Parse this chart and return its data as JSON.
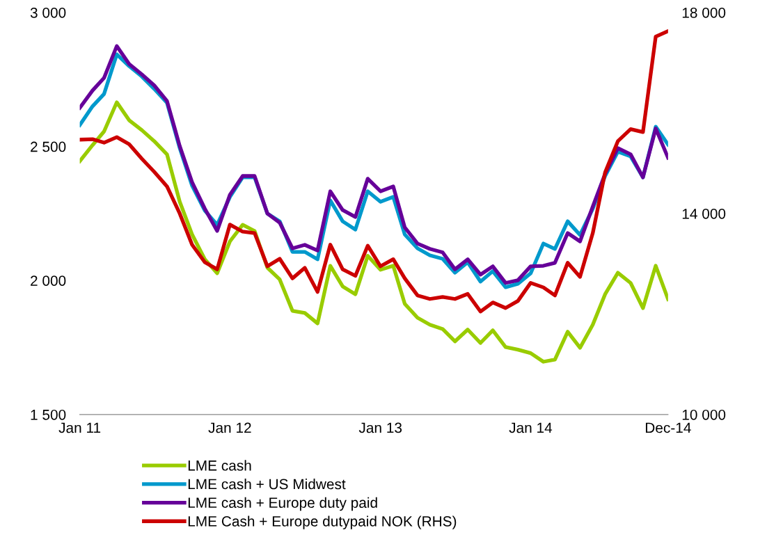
{
  "chart_data": {
    "type": "line",
    "x": [
      "2011-01",
      "2011-02",
      "2011-03",
      "2011-04",
      "2011-05",
      "2011-06",
      "2011-07",
      "2011-08",
      "2011-09",
      "2011-10",
      "2011-11",
      "2011-12",
      "2012-01",
      "2012-02",
      "2012-03",
      "2012-04",
      "2012-05",
      "2012-06",
      "2012-07",
      "2012-08",
      "2012-09",
      "2012-10",
      "2012-11",
      "2012-12",
      "2013-01",
      "2013-02",
      "2013-03",
      "2013-04",
      "2013-05",
      "2013-06",
      "2013-07",
      "2013-08",
      "2013-09",
      "2013-10",
      "2013-11",
      "2013-12",
      "2014-01",
      "2014-02",
      "2014-03",
      "2014-04",
      "2014-05",
      "2014-06",
      "2014-07",
      "2014-08",
      "2014-09",
      "2014-10",
      "2014-11",
      "2014-12"
    ],
    "series": [
      {
        "name": "LME cash",
        "color": "#99cc00",
        "values": [
          2445,
          2505,
          2556,
          2665,
          2598,
          2561,
          2520,
          2471,
          2294,
          2172,
          2079,
          2027,
          2146,
          2208,
          2185,
          2048,
          2004,
          1887,
          1879,
          1840,
          2055,
          1978,
          1949,
          2092,
          2040,
          2055,
          1913,
          1861,
          1835,
          1819,
          1773,
          1817,
          1767,
          1814,
          1752,
          1742,
          1729,
          1697,
          1705,
          1809,
          1749,
          1835,
          1949,
          2029,
          1991,
          1897,
          2055,
          1930
        ]
      },
      {
        "name": "LME cash + US Midwest",
        "color": "#0099cc",
        "values": [
          2580,
          2650,
          2696,
          2844,
          2800,
          2761,
          2715,
          2663,
          2494,
          2354,
          2261,
          2208,
          2312,
          2385,
          2385,
          2250,
          2221,
          2107,
          2107,
          2079,
          2299,
          2221,
          2190,
          2333,
          2294,
          2312,
          2172,
          2120,
          2094,
          2081,
          2029,
          2068,
          1996,
          2035,
          1975,
          1988,
          2027,
          2138,
          2118,
          2221,
          2170,
          2268,
          2390,
          2481,
          2463,
          2385,
          2574,
          2507
        ]
      },
      {
        "name": "LME cash + Europe duty paid",
        "color": "#660099",
        "values": [
          2644,
          2709,
          2756,
          2875,
          2808,
          2769,
          2728,
          2670,
          2502,
          2367,
          2268,
          2185,
          2320,
          2390,
          2390,
          2250,
          2216,
          2120,
          2133,
          2112,
          2333,
          2263,
          2237,
          2380,
          2333,
          2351,
          2198,
          2138,
          2118,
          2105,
          2042,
          2079,
          2022,
          2053,
          1991,
          2001,
          2053,
          2055,
          2066,
          2177,
          2146,
          2276,
          2398,
          2494,
          2471,
          2385,
          2567,
          2458
        ]
      },
      {
        "name": "LME Cash + Europe dutypaid NOK (RHS)",
        "color": "#cc0000",
        "axis": "y2",
        "values": [
          15470,
          15480,
          15410,
          15520,
          15380,
          15090,
          14830,
          14540,
          14000,
          13380,
          13030,
          12890,
          13780,
          13640,
          13610,
          12950,
          13100,
          12710,
          12920,
          12440,
          13380,
          12890,
          12760,
          13360,
          12950,
          13090,
          12710,
          12370,
          12300,
          12340,
          12300,
          12400,
          12050,
          12230,
          12120,
          12260,
          12620,
          12530,
          12370,
          13020,
          12740,
          13610,
          14820,
          15440,
          15680,
          15620,
          17520,
          17630
        ]
      }
    ],
    "xlim": [
      "2011-01",
      "2014-12"
    ],
    "xticks": [
      {
        "value": "2011-01",
        "label": "Jan 11"
      },
      {
        "value": "2012-01",
        "label": "Jan 12"
      },
      {
        "value": "2013-01",
        "label": "Jan 13"
      },
      {
        "value": "2014-01",
        "label": "Jan 14"
      },
      {
        "value": "2014-12",
        "label": "Dec-14"
      }
    ],
    "ylim": [
      1500,
      3000
    ],
    "yticks": [
      {
        "value": 1500,
        "label": "1 500"
      },
      {
        "value": 2000,
        "label": "2 000"
      },
      {
        "value": 2500,
        "label": "2 500"
      },
      {
        "value": 3000,
        "label": "3 000"
      }
    ],
    "y2lim": [
      10000,
      18000
    ],
    "y2ticks": [
      {
        "value": 10000,
        "label": "10 000"
      },
      {
        "value": 14000,
        "label": "14 000"
      },
      {
        "value": 18000,
        "label": "18 000"
      }
    ],
    "grid": false,
    "legend": "bottom",
    "line_style": "solid",
    "marker": "none"
  }
}
